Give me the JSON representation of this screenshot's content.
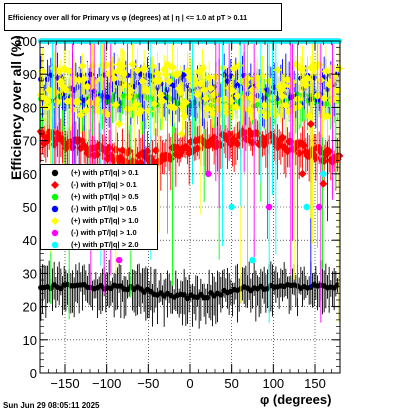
{
  "chart_data": {
    "type": "scatter",
    "title": "Efficiency over all for Primary vs φ (degrees) at |  η  | <= 1.0 at pT > 0.11",
    "xlabel": "φ (degrees)",
    "ylabel": "Efficiency over all (%)",
    "xlim": [
      -180,
      180
    ],
    "ylim": [
      0,
      100
    ],
    "x_ticks": [
      -150,
      -100,
      -50,
      0,
      50,
      100,
      150
    ],
    "y_ticks": [
      0,
      10,
      20,
      30,
      40,
      50,
      60,
      70,
      80,
      90,
      100
    ],
    "grid": true,
    "legend_position": "left-middle",
    "series": [
      {
        "name": "(+) with pT/|q| > 0.1",
        "color": "#000000",
        "marker": "circle",
        "level": 26,
        "spread": 2
      },
      {
        "name": "(-) with pT/|q| > 0.1",
        "color": "#ff0000",
        "marker": "diamond",
        "level": 68,
        "spread": 4
      },
      {
        "name": "(+) with pT/|q| > 0.5",
        "color": "#00ff00",
        "marker": "circle",
        "level": 82,
        "spread": 2
      },
      {
        "name": "(-) with pT/|q| > 0.5",
        "color": "#0000ff",
        "marker": "circle",
        "level": 86,
        "spread": 4
      },
      {
        "name": "(+) with pT/|q| > 1.0",
        "color": "#ffff00",
        "marker": "diamond",
        "level": 85,
        "spread": 8
      },
      {
        "name": "(-) with pT/|q| > 1.0",
        "color": "#ff00ff",
        "marker": "circle",
        "level": 100,
        "spread": 0
      },
      {
        "name": "(+) with pT/|q| > 2.0",
        "color": "#00ffff",
        "marker": "circle",
        "level": 100,
        "spread": 0
      }
    ]
  },
  "footer_text": "Sun Jun 29 08:05:11 2025"
}
